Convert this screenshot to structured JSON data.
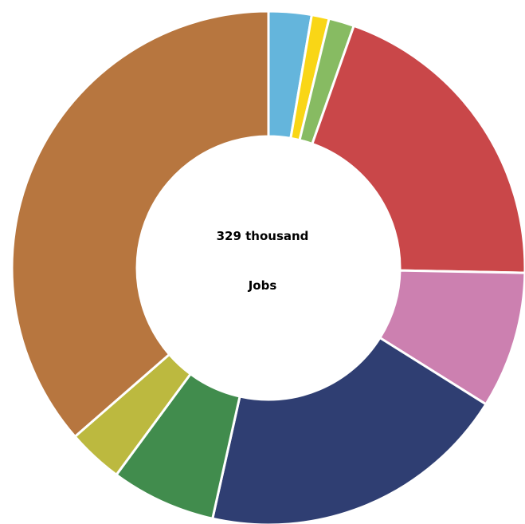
{
  "chart_data": {
    "type": "pie",
    "style": "donut",
    "center_value": "329 thousand",
    "center_label": "Jobs",
    "slice_border_color": "#ffffff",
    "slices": [
      {
        "value": 2.7,
        "color": "#64b5dc"
      },
      {
        "value": 1.1,
        "color": "#f9d616"
      },
      {
        "value": 1.6,
        "color": "#87bb62"
      },
      {
        "value": 19.9,
        "color": "#c94749"
      },
      {
        "value": 8.6,
        "color": "#cc80b0"
      },
      {
        "value": 19.6,
        "color": "#2f3e72"
      },
      {
        "value": 6.6,
        "color": "#418c4d"
      },
      {
        "value": 3.5,
        "color": "#bcb93f"
      },
      {
        "value": 36.4,
        "color": "#b7763f"
      }
    ]
  }
}
